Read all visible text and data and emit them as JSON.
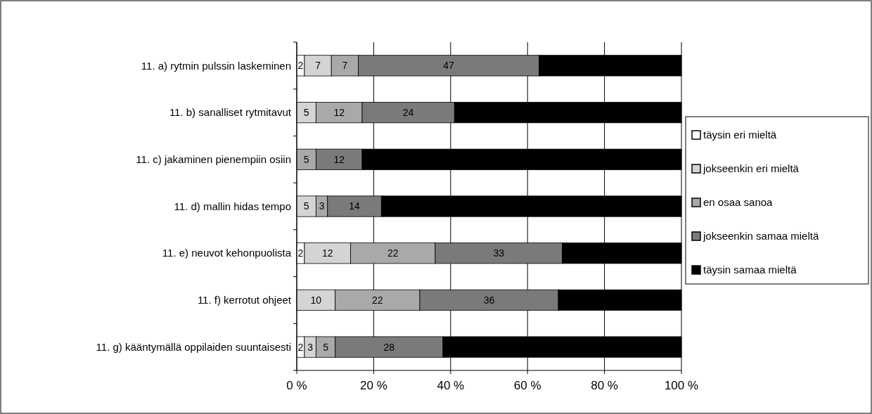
{
  "chart_data": {
    "type": "bar",
    "orientation": "horizontal",
    "stacked": true,
    "categories": [
      "11. a) rytmin pulssin laskeminen",
      "11. b) sanalliset rytmitavut",
      "11. c) jakaminen pienempiin osiin",
      "11. d) mallin hidas tempo",
      "11. e) neuvot kehonpuolista",
      "11. f) kerrotut ohjeet",
      "11. g) kääntymällä oppilaiden suuntaisesti"
    ],
    "series": [
      {
        "name": "täysin eri mieltä",
        "color": "#ffffff",
        "values": [
          2,
          0,
          0,
          0,
          2,
          0,
          2
        ],
        "value_labels": [
          "2",
          null,
          null,
          null,
          "2",
          null,
          "2"
        ]
      },
      {
        "name": "jokseenkin eri mieltä",
        "color": "#d4d4d4",
        "values": [
          7,
          5,
          0,
          5,
          12,
          10,
          3
        ],
        "value_labels": [
          "7",
          "5",
          null,
          "5",
          "12",
          "10",
          "3"
        ]
      },
      {
        "name": "en osaa sanoa",
        "color": "#a9a9a9",
        "values": [
          7,
          12,
          5,
          3,
          22,
          22,
          5
        ],
        "value_labels": [
          "7",
          "12",
          "5",
          "3",
          "22",
          "22",
          "5"
        ]
      },
      {
        "name": "jokseenkin samaa mieltä",
        "color": "#7a7a7a",
        "values": [
          47,
          24,
          12,
          14,
          33,
          36,
          28
        ],
        "value_labels": [
          "47",
          "24",
          "12",
          "14",
          "33",
          "36",
          "28"
        ]
      },
      {
        "name": "täysin samaa mieltä",
        "color": "#000000",
        "values": [
          37,
          59,
          83,
          78,
          31,
          32,
          62
        ],
        "value_labels": [
          null,
          null,
          null,
          null,
          null,
          null,
          null
        ]
      }
    ],
    "xlim": [
      0,
      100
    ],
    "xticks": [
      {
        "value": 0,
        "label": "0 %"
      },
      {
        "value": 20,
        "label": "20 %"
      },
      {
        "value": 40,
        "label": "40 %"
      },
      {
        "value": 60,
        "label": "60 %"
      },
      {
        "value": 80,
        "label": "80 %"
      },
      {
        "value": 100,
        "label": "100 %"
      }
    ],
    "grid": "x",
    "legend": "right"
  }
}
